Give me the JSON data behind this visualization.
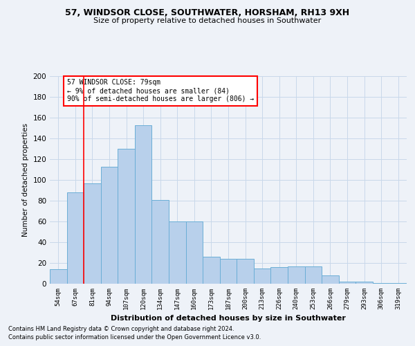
{
  "title1": "57, WINDSOR CLOSE, SOUTHWATER, HORSHAM, RH13 9XH",
  "title2": "Size of property relative to detached houses in Southwater",
  "xlabel": "Distribution of detached houses by size in Southwater",
  "ylabel": "Number of detached properties",
  "categories": [
    "54sqm",
    "67sqm",
    "81sqm",
    "94sqm",
    "107sqm",
    "120sqm",
    "134sqm",
    "147sqm",
    "160sqm",
    "173sqm",
    "187sqm",
    "200sqm",
    "213sqm",
    "226sqm",
    "240sqm",
    "253sqm",
    "266sqm",
    "279sqm",
    "293sqm",
    "306sqm",
    "319sqm"
  ],
  "values": [
    14,
    88,
    97,
    113,
    130,
    153,
    81,
    60,
    60,
    26,
    24,
    24,
    15,
    16,
    17,
    17,
    8,
    2,
    2,
    1,
    1
  ],
  "bar_color": "#b8d0eb",
  "bar_edge_color": "#6aaed6",
  "grid_color": "#c8d8ea",
  "vline_x": 1.5,
  "vline_color": "red",
  "annotation_text": "57 WINDSOR CLOSE: 79sqm\n← 9% of detached houses are smaller (84)\n90% of semi-detached houses are larger (806) →",
  "annotation_box_color": "white",
  "annotation_box_edge_color": "red",
  "ylim": [
    0,
    200
  ],
  "yticks": [
    0,
    20,
    40,
    60,
    80,
    100,
    120,
    140,
    160,
    180,
    200
  ],
  "footnote1": "Contains HM Land Registry data © Crown copyright and database right 2024.",
  "footnote2": "Contains public sector information licensed under the Open Government Licence v3.0.",
  "background_color": "#eef2f8"
}
